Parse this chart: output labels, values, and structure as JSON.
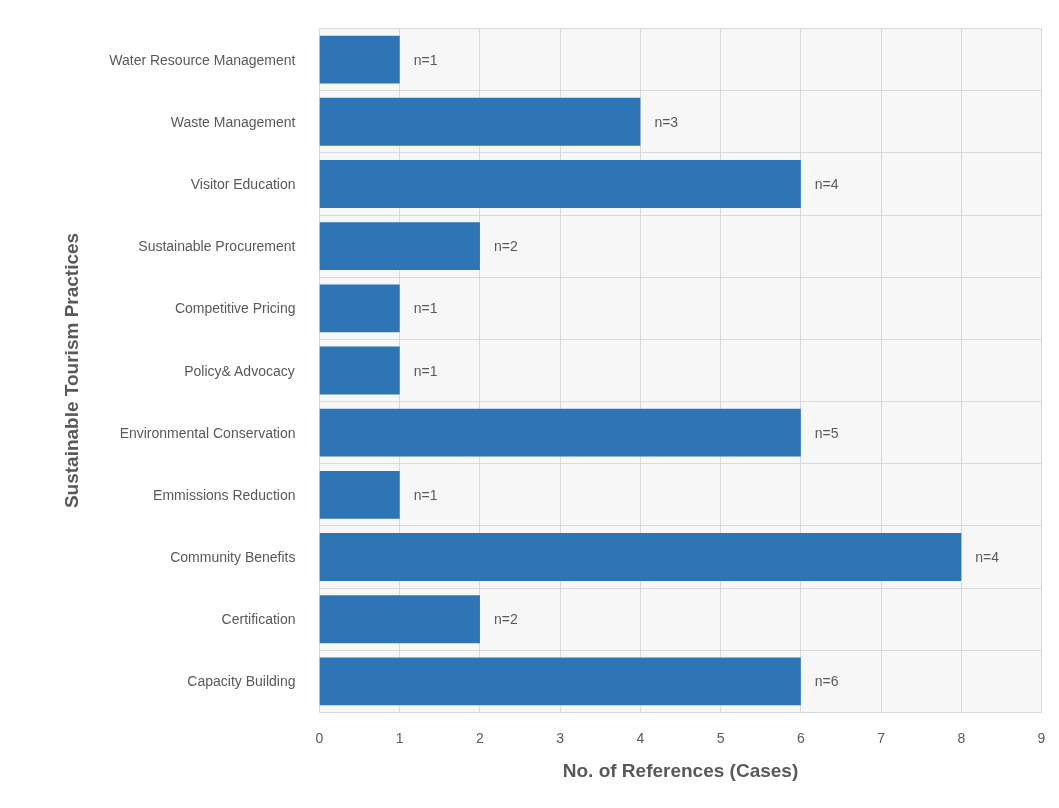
{
  "chart_data": {
    "type": "bar",
    "orientation": "horizontal",
    "xlabel": "No. of References (Cases)",
    "ylabel": "Sustainable Tourism Practices",
    "categories": [
      "Water Resource Management",
      "Waste Management",
      "Visitor Education",
      "Sustainable Procurement",
      "Competitive Pricing",
      "Policy& Advocacy",
      "Environmental Conservation",
      "Emmissions Reduction",
      "Community Benefits",
      "Certification",
      "Capacity Building"
    ],
    "values": [
      1,
      4,
      6,
      2,
      1,
      1,
      6,
      1,
      8,
      2,
      6
    ],
    "annotations": [
      {
        "text": "n=1",
        "x": 1,
        "y": "Water Resource Management"
      },
      {
        "text": "n=3",
        "x": 4,
        "y": "Waste Management"
      },
      {
        "text": "n=4",
        "x": 6,
        "y": "Visitor Education"
      },
      {
        "text": "n=2",
        "x": 2,
        "y": "Sustainable Procurement"
      },
      {
        "text": "n=1",
        "x": 1,
        "y": "Competitive Pricing"
      },
      {
        "text": "n=1",
        "x": 1,
        "y": "Policy& Advocacy"
      },
      {
        "text": "n=5",
        "x": 6,
        "y": "Environmental Conservation"
      },
      {
        "text": "n=1",
        "x": 1,
        "y": "Emmissions Reduction"
      },
      {
        "text": "n=4",
        "x": 8,
        "y": "Community Benefits"
      },
      {
        "text": "n=2",
        "x": 2,
        "y": "Certification"
      },
      {
        "text": "n=6",
        "x": 6,
        "y": "Capacity Building"
      }
    ],
    "color": "#2e75b6",
    "xlim": [
      0,
      9
    ],
    "xticks": [
      0,
      1,
      2,
      3,
      4,
      5,
      6,
      7,
      8,
      9
    ],
    "grid": true
  }
}
